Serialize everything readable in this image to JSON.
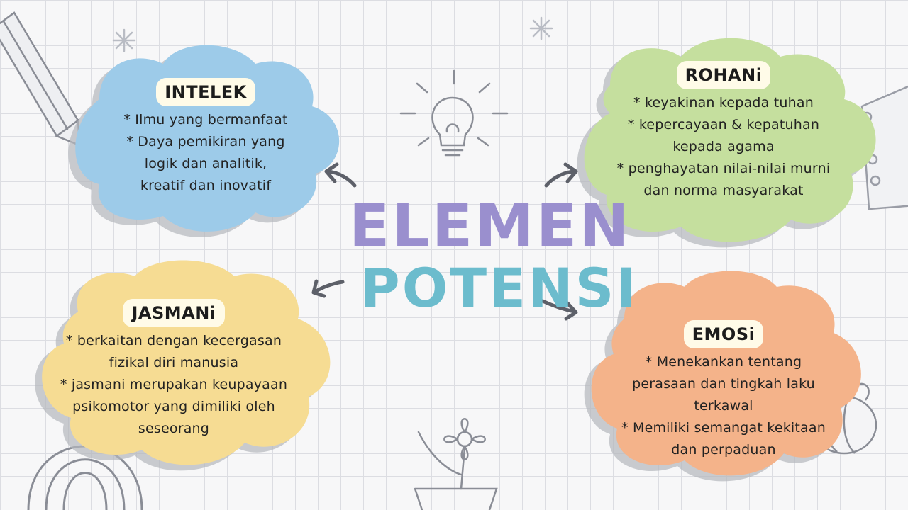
{
  "title": {
    "line1": "ELEMEN",
    "line2": "POTENSI"
  },
  "colors": {
    "intelek": "#9dcbe9",
    "rohani": "#c5df9e",
    "jasmani": "#f6dc93",
    "emosi": "#f4b38a",
    "title_line1": "#9a8fce",
    "title_line2": "#6cbccd"
  },
  "nodes": [
    {
      "label": "INTELEK",
      "lines": [
        "* Ilmu yang bermanfaat",
        "* Daya pemikiran yang",
        "logik dan analitik,",
        "kreatif dan inovatif"
      ]
    },
    {
      "label": "ROHANi",
      "lines": [
        "* keyakinan kepada tuhan",
        "* kepercayaan & kepatuhan",
        "kepada agama",
        "* penghayatan nilai-nilai murni",
        "dan norma masyarakat"
      ]
    },
    {
      "label": "JASMANi",
      "lines": [
        "* berkaitan dengan kecergasan",
        "fizikal diri manusia",
        "* jasmani merupakan keupayaan",
        "psikomotor yang dimiliki oleh",
        "seseorang"
      ]
    },
    {
      "label": "EMOSi",
      "lines": [
        "* Menekankan tentang",
        "perasaan dan tingkah laku",
        "terkawal",
        "* Memiliki semangat kekitaan",
        "dan perpaduan"
      ]
    }
  ],
  "decorations": [
    "pencil-icon",
    "lightbulb-icon",
    "sparkle-icon",
    "notebook-icon",
    "rainbow-icon",
    "flower-pot-icon",
    "bee-icon"
  ]
}
